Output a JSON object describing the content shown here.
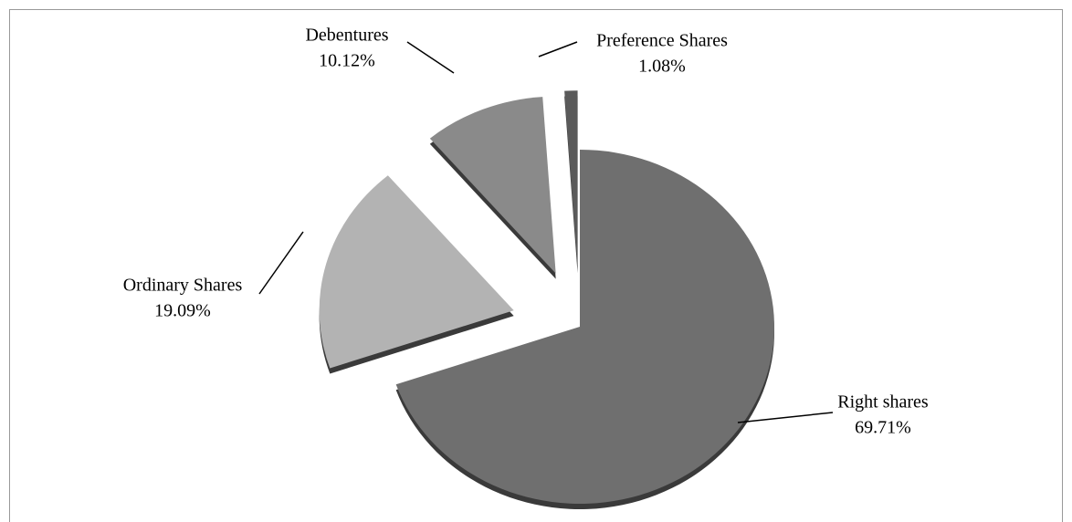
{
  "chart_data": {
    "type": "pie",
    "categories": [
      "Right shares",
      "Ordinary Shares",
      "Debentures",
      "Preference Shares"
    ],
    "values": [
      69.71,
      19.09,
      10.12,
      1.08
    ],
    "value_labels": [
      "69.71%",
      "19.09%",
      "10.12%",
      "1.08%"
    ],
    "colors": [
      "#6f6f6f",
      "#b3b3b3",
      "#8a8a8a",
      "#5a5a5a"
    ]
  }
}
